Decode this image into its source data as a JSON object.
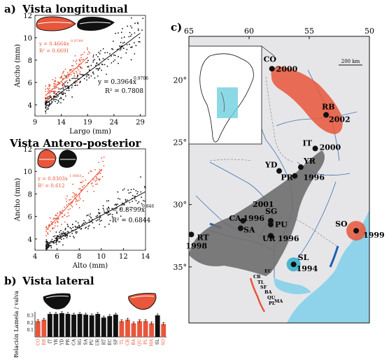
{
  "panel_a": {
    "label": "a)",
    "title_long": "Vista longitudinal",
    "title_ap": "Vista Antero-posterior"
  },
  "panel_b": {
    "label": "b)",
    "title": "Vista lateral"
  },
  "panel_c": {
    "label": "c)"
  },
  "colors": {
    "red": "#e8563b",
    "black": "#111111",
    "gray": "#6e6e6e",
    "water": "#8fd3ea",
    "map_bg": "#e6e6e9"
  },
  "chart_data": [
    {
      "type": "scatter",
      "name_panel": "a-top",
      "xlabel": "Largo (mm)",
      "ylabel": "Ancho (mm)",
      "xlim": [
        9,
        30
      ],
      "ylim": [
        3,
        12
      ],
      "xticks": [
        9,
        14,
        19,
        24,
        29
      ],
      "yticks": [
        4,
        6,
        8,
        10,
        12
      ],
      "red_eq": "y = 0.4664x",
      "red_exp": "0.9749",
      "red_r2": "R² = 0.6691",
      "black_eq": "y = 0.3964x",
      "black_exp": "0.9706",
      "black_r2": "R² = 0.7808",
      "red_fit": {
        "a": 0.4664,
        "b": 0.9749,
        "x": [
          11,
          19
        ]
      },
      "black_fit": {
        "a": 0.3964,
        "b": 0.9706,
        "x": [
          11,
          29
        ]
      }
    },
    {
      "type": "scatter",
      "name_panel": "a-bottom",
      "xlabel": "Alto (mm)",
      "ylabel": "Ancho (mm)",
      "xlim": [
        4,
        14
      ],
      "ylim": [
        3,
        12
      ],
      "xticks": [
        4,
        6,
        8,
        10,
        12,
        14
      ],
      "yticks": [
        4,
        6,
        8,
        10,
        12
      ],
      "red_eq": "y = 0.8303x",
      "red_exp": "1.0883",
      "red_r2": "R² = 0.612",
      "black_eq": "y = 0.8799x",
      "black_exp": "0.846",
      "black_r2": "R² = 0.6844",
      "red_fit": {
        "a": 0.8303,
        "b": 1.0883,
        "x": [
          5,
          10
        ]
      },
      "black_fit": {
        "a": 0.8799,
        "b": 0.846,
        "x": [
          5,
          14
        ]
      }
    },
    {
      "type": "bar",
      "name_panel": "b",
      "ylabel": "Relación Lamela / valva",
      "ylim": [
        0,
        0.35
      ],
      "yticks": [
        0.1,
        0.2,
        0.3
      ],
      "categories": [
        "CO",
        "RB",
        "IT",
        "YR",
        "YD",
        "PR",
        "CA",
        "SG",
        "SA",
        "PU",
        "UR",
        "RT",
        "EC",
        "SF",
        "TL",
        "CR",
        "BA",
        "QU",
        "PL",
        "MA",
        "SL",
        "SO"
      ],
      "values": [
        0.22,
        0.24,
        0.32,
        0.32,
        0.33,
        0.32,
        0.31,
        0.32,
        0.31,
        0.3,
        0.32,
        0.27,
        0.29,
        0.31,
        0.22,
        0.24,
        0.19,
        0.22,
        0.22,
        0.19,
        0.3,
        0.18
      ],
      "errors": [
        0.02,
        0.02,
        0.02,
        0.02,
        0.02,
        0.02,
        0.02,
        0.02,
        0.02,
        0.02,
        0.02,
        0.02,
        0.02,
        0.02,
        0.02,
        0.02,
        0.02,
        0.02,
        0.02,
        0.02,
        0.02,
        0.02
      ],
      "bar_colors": [
        "red",
        "red",
        "black",
        "black",
        "black",
        "black",
        "black",
        "black",
        "black",
        "black",
        "black",
        "black",
        "black",
        "black",
        "red",
        "red",
        "red",
        "red",
        "red",
        "red",
        "black",
        "red"
      ]
    },
    {
      "type": "map",
      "name_panel": "c",
      "x_ticks": [
        "65",
        "60",
        "55",
        "50"
      ],
      "y_ticks": [
        "20°",
        "25°",
        "30°",
        "35°"
      ],
      "lon_ticks": [
        65,
        60,
        55,
        50
      ],
      "lat_ticks": [
        20,
        25,
        30,
        35
      ],
      "lon_range": [
        65,
        50
      ],
      "lat_range": [
        16.5,
        39.5
      ],
      "scale_label": "200 km",
      "sites": [
        {
          "code": "CO",
          "year": "2000",
          "lon": 58.1,
          "lat": 19.1
        },
        {
          "code": "RB",
          "year": "2002",
          "lon": 53.6,
          "lat": 22.8
        },
        {
          "code": "IT",
          "year": "2000",
          "lon": 54.5,
          "lat": 25.5
        },
        {
          "code": "YD",
          "year": "",
          "lon": 57.5,
          "lat": 27.3
        },
        {
          "code": "YR",
          "year": "",
          "lon": 55.7,
          "lat": 27.0
        },
        {
          "code": "PR",
          "year": "1996",
          "lon": 56.2,
          "lat": 27.7
        },
        {
          "code": "CA",
          "year": "1996",
          "lon": 60.5,
          "lat": 31.3
        },
        {
          "code": "SA",
          "year": "",
          "lon": 60.7,
          "lat": 31.9
        },
        {
          "code": "SG",
          "year": "2001",
          "lon": 58.2,
          "lat": 31.3
        },
        {
          "code": "PU",
          "year": "",
          "lon": 58.2,
          "lat": 31.6
        },
        {
          "code": "UR",
          "year": "1996",
          "lon": 58.2,
          "lat": 32.5
        },
        {
          "code": "RT",
          "year": "1998",
          "lon": 64.8,
          "lat": 32.4
        },
        {
          "code": "SO",
          "year": "1999",
          "lon": 51.1,
          "lat": 32.1
        },
        {
          "code": "SL",
          "year": "1994",
          "lon": 56.3,
          "lat": 34.8
        }
      ],
      "small_sites": [
        "EC",
        "CR",
        "TL",
        "SF",
        "BA",
        "QU",
        "PL",
        "MA"
      ]
    }
  ]
}
